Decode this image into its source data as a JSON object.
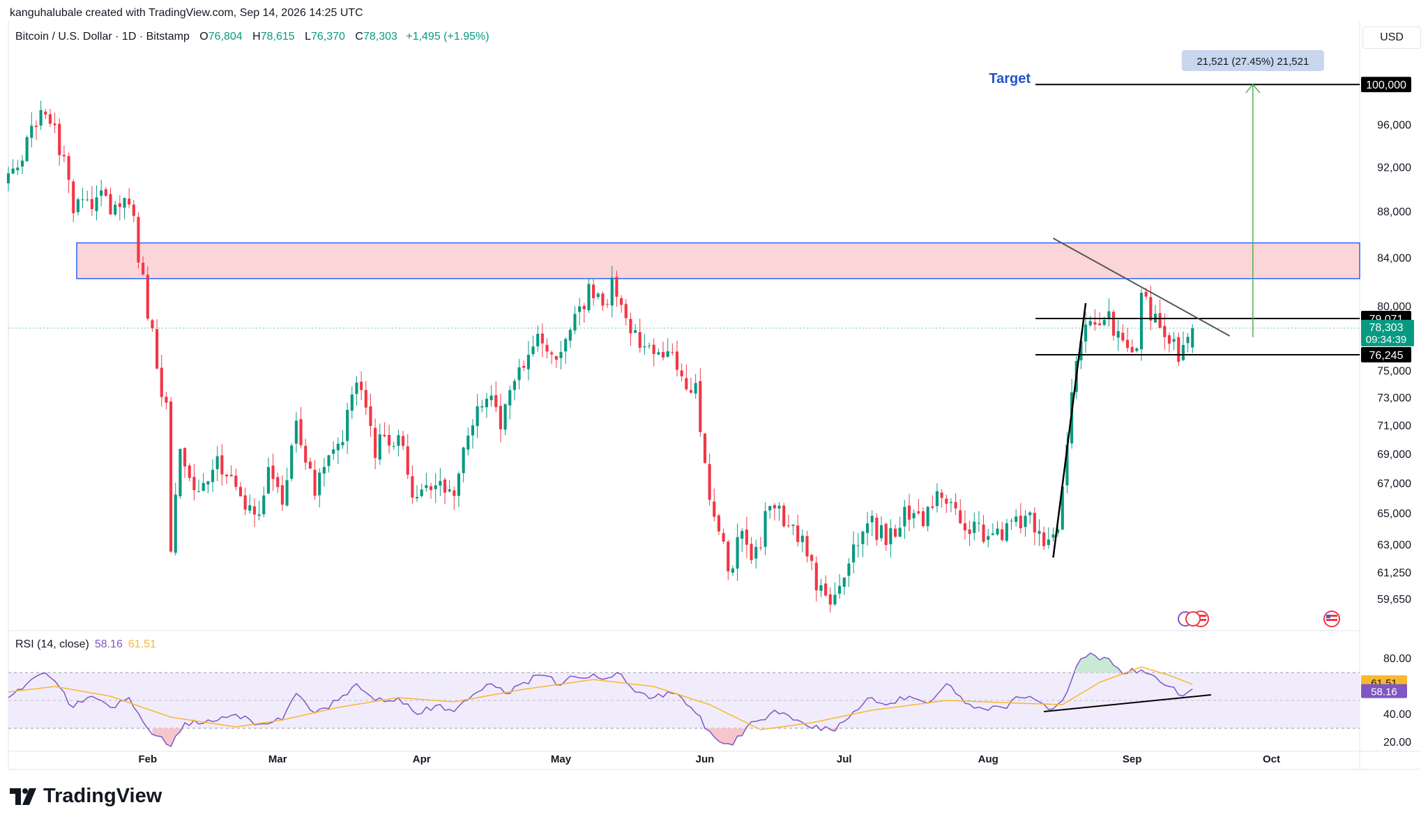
{
  "header": {
    "attribution": "kanguhalubale created with TradingView.com, Sep 14, 2026 14:25 UTC",
    "symbol": "Bitcoin / U.S. Dollar · 1D · Bitstamp",
    "ohlc": {
      "o_label": "O",
      "o": "76,804",
      "h_label": "H",
      "h": "78,615",
      "l_label": "L",
      "l": "76,370",
      "c_label": "C",
      "c": "78,303",
      "change": "+1,495 (+1.95%)"
    },
    "currency": "USD"
  },
  "colors": {
    "up": "#089981",
    "down": "#f23645",
    "rsi": "#7e57c2",
    "rsi_ma": "#f7b731",
    "zone_fill": "#fcd5d9",
    "zone_border": "#2962ff",
    "measure": "#4caf50",
    "target_text": "#2453c7"
  },
  "annotations": {
    "target_label": "Target",
    "measure_label": "21,521 (27.45%) 21,521",
    "levels": [
      {
        "label": "100,000",
        "value": 100000
      },
      {
        "label": "79,071",
        "value": 79071
      },
      {
        "label": "76,245",
        "value": 76245
      }
    ],
    "last_price": "78,303",
    "countdown": "09:34:39",
    "zone": {
      "low": 82300,
      "high": 85300
    },
    "rsi_last": "58.16",
    "rsi_ma_last": "61.51"
  },
  "rsi_legend": {
    "label": "RSI (14, close)",
    "value": "58.16",
    "ma": "61.51"
  },
  "logo": {
    "text": "TradingView",
    "icon": "tradingview-logo-icon"
  },
  "event_icons": [
    "us-flag-event-icon",
    "us-flag-event-icon"
  ],
  "chart_data": {
    "type": "candlestick",
    "title": "Bitcoin / U.S. Dollar · 1D · Bitstamp",
    "y_scale": "log",
    "ylim": [
      57800,
      103500
    ],
    "y_ticks": [
      {
        "label": "100,000",
        "value": 100000
      },
      {
        "label": "96,000",
        "value": 96000
      },
      {
        "label": "92,000",
        "value": 92000
      },
      {
        "label": "88,000",
        "value": 88000
      },
      {
        "label": "84,000",
        "value": 84000
      },
      {
        "label": "80,000",
        "value": 80000
      },
      {
        "label": "75,000",
        "value": 75000
      },
      {
        "label": "73,000",
        "value": 73000
      },
      {
        "label": "71,000",
        "value": 71000
      },
      {
        "label": "69,000",
        "value": 69000
      },
      {
        "label": "67,000",
        "value": 67000
      },
      {
        "label": "65,000",
        "value": 65000
      },
      {
        "label": "63,000",
        "value": 63000
      },
      {
        "label": "61,250",
        "value": 61250
      },
      {
        "label": "59,650",
        "value": 59650
      }
    ],
    "x_labels": [
      {
        "label": "Feb",
        "date": "2026-02-01"
      },
      {
        "label": "Mar",
        "date": "2026-03-01"
      },
      {
        "label": "Apr",
        "date": "2026-04-01"
      },
      {
        "label": "May",
        "date": "2026-05-01"
      },
      {
        "label": "Jun",
        "date": "2026-06-01"
      },
      {
        "label": "Jul",
        "date": "2026-07-01"
      },
      {
        "label": "Aug",
        "date": "2026-08-01"
      },
      {
        "label": "Sep",
        "date": "2026-09-01"
      },
      {
        "label": "Oct",
        "date": "2026-10-01"
      }
    ],
    "x_range": [
      "2026-01-02",
      "2026-10-20"
    ],
    "anchors": [
      {
        "date": "2026-01-02",
        "price": 90500
      },
      {
        "date": "2026-01-06",
        "price": 94500
      },
      {
        "date": "2026-01-09",
        "price": 97500
      },
      {
        "date": "2026-01-12",
        "price": 96000
      },
      {
        "date": "2026-01-16",
        "price": 88500
      },
      {
        "date": "2026-01-22",
        "price": 89500
      },
      {
        "date": "2026-01-24",
        "price": 88000
      },
      {
        "date": "2026-01-28",
        "price": 89500
      },
      {
        "date": "2026-01-30",
        "price": 84500
      },
      {
        "date": "2026-02-02",
        "price": 77500
      },
      {
        "date": "2026-02-05",
        "price": 72000
      },
      {
        "date": "2026-02-06",
        "price": 63000
      },
      {
        "date": "2026-02-08",
        "price": 69500
      },
      {
        "date": "2026-02-12",
        "price": 66500
      },
      {
        "date": "2026-02-16",
        "price": 68800
      },
      {
        "date": "2026-02-20",
        "price": 67000
      },
      {
        "date": "2026-02-24",
        "price": 64500
      },
      {
        "date": "2026-02-27",
        "price": 67500
      },
      {
        "date": "2026-03-02",
        "price": 65500
      },
      {
        "date": "2026-03-05",
        "price": 71500
      },
      {
        "date": "2026-03-09",
        "price": 66500
      },
      {
        "date": "2026-03-14",
        "price": 69500
      },
      {
        "date": "2026-03-18",
        "price": 74000
      },
      {
        "date": "2026-03-22",
        "price": 69500
      },
      {
        "date": "2026-03-27",
        "price": 70500
      },
      {
        "date": "2026-03-31",
        "price": 65500
      },
      {
        "date": "2026-04-04",
        "price": 67500
      },
      {
        "date": "2026-04-08",
        "price": 66500
      },
      {
        "date": "2026-04-12",
        "price": 71000
      },
      {
        "date": "2026-04-15",
        "price": 73500
      },
      {
        "date": "2026-04-18",
        "price": 71500
      },
      {
        "date": "2026-04-22",
        "price": 75000
      },
      {
        "date": "2026-04-26",
        "price": 77500
      },
      {
        "date": "2026-04-30",
        "price": 75500
      },
      {
        "date": "2026-05-03",
        "price": 78000
      },
      {
        "date": "2026-05-07",
        "price": 81000
      },
      {
        "date": "2026-05-10",
        "price": 80000
      },
      {
        "date": "2026-05-12",
        "price": 81500
      },
      {
        "date": "2026-05-15",
        "price": 78800
      },
      {
        "date": "2026-05-19",
        "price": 76800
      },
      {
        "date": "2026-05-24",
        "price": 76500
      },
      {
        "date": "2026-05-27",
        "price": 74000
      },
      {
        "date": "2026-05-30",
        "price": 73500
      },
      {
        "date": "2026-06-02",
        "price": 66500
      },
      {
        "date": "2026-06-04",
        "price": 64500
      },
      {
        "date": "2026-06-06",
        "price": 61000
      },
      {
        "date": "2026-06-09",
        "price": 63800
      },
      {
        "date": "2026-06-11",
        "price": 61500
      },
      {
        "date": "2026-06-14",
        "price": 64500
      },
      {
        "date": "2026-06-16",
        "price": 66000
      },
      {
        "date": "2026-06-19",
        "price": 64000
      },
      {
        "date": "2026-06-22",
        "price": 63500
      },
      {
        "date": "2026-06-25",
        "price": 60500
      },
      {
        "date": "2026-06-29",
        "price": 59500
      },
      {
        "date": "2026-07-02",
        "price": 62000
      },
      {
        "date": "2026-07-06",
        "price": 64500
      },
      {
        "date": "2026-07-10",
        "price": 63500
      },
      {
        "date": "2026-07-14",
        "price": 64800
      },
      {
        "date": "2026-07-18",
        "price": 64200
      },
      {
        "date": "2026-07-22",
        "price": 66500
      },
      {
        "date": "2026-07-26",
        "price": 64200
      },
      {
        "date": "2026-07-30",
        "price": 63800
      },
      {
        "date": "2026-08-03",
        "price": 63500
      },
      {
        "date": "2026-08-06",
        "price": 64800
      },
      {
        "date": "2026-08-10",
        "price": 64500
      },
      {
        "date": "2026-08-14",
        "price": 63200
      },
      {
        "date": "2026-08-16",
        "price": 64500
      },
      {
        "date": "2026-08-18",
        "price": 69500
      },
      {
        "date": "2026-08-19",
        "price": 73000
      },
      {
        "date": "2026-08-21",
        "price": 77500
      },
      {
        "date": "2026-08-24",
        "price": 78500
      },
      {
        "date": "2026-08-26",
        "price": 79500
      },
      {
        "date": "2026-08-29",
        "price": 77500
      },
      {
        "date": "2026-09-02",
        "price": 77000
      },
      {
        "date": "2026-09-03",
        "price": 80500
      },
      {
        "date": "2026-09-06",
        "price": 79000
      },
      {
        "date": "2026-09-09",
        "price": 77500
      },
      {
        "date": "2026-09-11",
        "price": 76500
      },
      {
        "date": "2026-09-13",
        "price": 76808
      },
      {
        "date": "2026-09-14",
        "price": 78303
      }
    ],
    "last_candle": {
      "date": "2026-09-14",
      "open": 76804,
      "high": 78615,
      "low": 76370,
      "close": 78303
    },
    "rsi": {
      "ylim": [
        15,
        90
      ],
      "ticks": [
        {
          "label": "80.00",
          "value": 80
        },
        {
          "label": "40.00",
          "value": 40
        },
        {
          "label": "20.00",
          "value": 20
        }
      ],
      "bands": [
        70,
        50,
        30
      ],
      "points": [
        {
          "date": "2026-01-02",
          "rsi": 52
        },
        {
          "date": "2026-01-06",
          "rsi": 62
        },
        {
          "date": "2026-01-09",
          "rsi": 69
        },
        {
          "date": "2026-01-12",
          "rsi": 64
        },
        {
          "date": "2026-01-16",
          "rsi": 45
        },
        {
          "date": "2026-01-20",
          "rsi": 53
        },
        {
          "date": "2026-01-24",
          "rsi": 45
        },
        {
          "date": "2026-01-28",
          "rsi": 52
        },
        {
          "date": "2026-02-01",
          "rsi": 30
        },
        {
          "date": "2026-02-04",
          "rsi": 24
        },
        {
          "date": "2026-02-06",
          "rsi": 17
        },
        {
          "date": "2026-02-09",
          "rsi": 34
        },
        {
          "date": "2026-02-14",
          "rsi": 36
        },
        {
          "date": "2026-02-20",
          "rsi": 40
        },
        {
          "date": "2026-02-25",
          "rsi": 33
        },
        {
          "date": "2026-03-02",
          "rsi": 36
        },
        {
          "date": "2026-03-05",
          "rsi": 55
        },
        {
          "date": "2026-03-09",
          "rsi": 41
        },
        {
          "date": "2026-03-14",
          "rsi": 50
        },
        {
          "date": "2026-03-18",
          "rsi": 62
        },
        {
          "date": "2026-03-22",
          "rsi": 50
        },
        {
          "date": "2026-03-27",
          "rsi": 52
        },
        {
          "date": "2026-03-31",
          "rsi": 40
        },
        {
          "date": "2026-04-05",
          "rsi": 47
        },
        {
          "date": "2026-04-08",
          "rsi": 42
        },
        {
          "date": "2026-04-13",
          "rsi": 56
        },
        {
          "date": "2026-04-16",
          "rsi": 62
        },
        {
          "date": "2026-04-19",
          "rsi": 55
        },
        {
          "date": "2026-04-23",
          "rsi": 63
        },
        {
          "date": "2026-04-27",
          "rsi": 68
        },
        {
          "date": "2026-05-01",
          "rsi": 61
        },
        {
          "date": "2026-05-04",
          "rsi": 67
        },
        {
          "date": "2026-05-08",
          "rsi": 69
        },
        {
          "date": "2026-05-11",
          "rsi": 66
        },
        {
          "date": "2026-05-13",
          "rsi": 70
        },
        {
          "date": "2026-05-17",
          "rsi": 56
        },
        {
          "date": "2026-05-21",
          "rsi": 52
        },
        {
          "date": "2026-05-25",
          "rsi": 55
        },
        {
          "date": "2026-05-29",
          "rsi": 45
        },
        {
          "date": "2026-06-02",
          "rsi": 28
        },
        {
          "date": "2026-06-05",
          "rsi": 19
        },
        {
          "date": "2026-06-07",
          "rsi": 18
        },
        {
          "date": "2026-06-10",
          "rsi": 31
        },
        {
          "date": "2026-06-13",
          "rsi": 36
        },
        {
          "date": "2026-06-16",
          "rsi": 43
        },
        {
          "date": "2026-06-20",
          "rsi": 36
        },
        {
          "date": "2026-06-24",
          "rsi": 30
        },
        {
          "date": "2026-06-29",
          "rsi": 28
        },
        {
          "date": "2026-07-03",
          "rsi": 42
        },
        {
          "date": "2026-07-07",
          "rsi": 52
        },
        {
          "date": "2026-07-11",
          "rsi": 48
        },
        {
          "date": "2026-07-15",
          "rsi": 53
        },
        {
          "date": "2026-07-19",
          "rsi": 48
        },
        {
          "date": "2026-07-23",
          "rsi": 62
        },
        {
          "date": "2026-07-27",
          "rsi": 48
        },
        {
          "date": "2026-07-31",
          "rsi": 44
        },
        {
          "date": "2026-08-04",
          "rsi": 45
        },
        {
          "date": "2026-08-08",
          "rsi": 52
        },
        {
          "date": "2026-08-12",
          "rsi": 49
        },
        {
          "date": "2026-08-15",
          "rsi": 44
        },
        {
          "date": "2026-08-17",
          "rsi": 50
        },
        {
          "date": "2026-08-19",
          "rsi": 65
        },
        {
          "date": "2026-08-21",
          "rsi": 80
        },
        {
          "date": "2026-08-23",
          "rsi": 84
        },
        {
          "date": "2026-08-25",
          "rsi": 79
        },
        {
          "date": "2026-08-27",
          "rsi": 80
        },
        {
          "date": "2026-08-30",
          "rsi": 69
        },
        {
          "date": "2026-09-03",
          "rsi": 72
        },
        {
          "date": "2026-09-06",
          "rsi": 67
        },
        {
          "date": "2026-09-09",
          "rsi": 60
        },
        {
          "date": "2026-09-11",
          "rsi": 54
        },
        {
          "date": "2026-09-13",
          "rsi": 56
        },
        {
          "date": "2026-09-14",
          "rsi": 58.16
        }
      ],
      "ma_points": [
        {
          "date": "2026-01-02",
          "v": 56
        },
        {
          "date": "2026-01-12",
          "v": 60
        },
        {
          "date": "2026-01-24",
          "v": 53
        },
        {
          "date": "2026-02-06",
          "v": 38
        },
        {
          "date": "2026-02-20",
          "v": 31
        },
        {
          "date": "2026-03-02",
          "v": 36
        },
        {
          "date": "2026-03-14",
          "v": 45
        },
        {
          "date": "2026-03-27",
          "v": 52
        },
        {
          "date": "2026-04-08",
          "v": 49
        },
        {
          "date": "2026-04-23",
          "v": 58
        },
        {
          "date": "2026-05-08",
          "v": 65
        },
        {
          "date": "2026-05-21",
          "v": 60
        },
        {
          "date": "2026-06-02",
          "v": 47
        },
        {
          "date": "2026-06-13",
          "v": 29
        },
        {
          "date": "2026-06-24",
          "v": 34
        },
        {
          "date": "2026-07-07",
          "v": 43
        },
        {
          "date": "2026-07-23",
          "v": 50
        },
        {
          "date": "2026-08-08",
          "v": 48
        },
        {
          "date": "2026-08-17",
          "v": 47
        },
        {
          "date": "2026-08-25",
          "v": 63
        },
        {
          "date": "2026-09-03",
          "v": 74
        },
        {
          "date": "2026-09-09",
          "v": 68
        },
        {
          "date": "2026-09-14",
          "v": 61.51
        }
      ]
    }
  }
}
